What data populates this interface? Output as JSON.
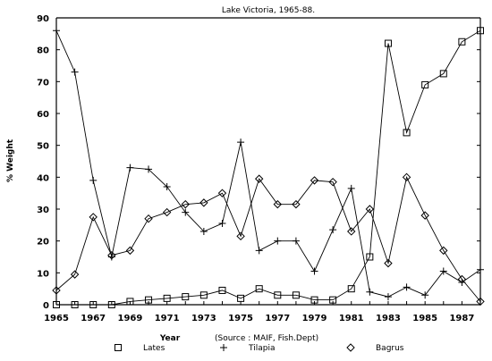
{
  "chart_data": {
    "type": "line",
    "title": "Lake Victoria, 1965-88.",
    "xlabel": "Year",
    "ylabel": "% Weight",
    "source_note": "(Source : MAIF, Fish.Dept)",
    "xlim": [
      1965,
      1988
    ],
    "ylim": [
      0,
      90
    ],
    "x_ticks": [
      "1965",
      "1967",
      "1969",
      "1971",
      "1973",
      "1975",
      "1977",
      "1979",
      "1981",
      "1983",
      "1985",
      "1987"
    ],
    "y_ticks": [
      "0",
      "10",
      "20",
      "30",
      "40",
      "50",
      "60",
      "70",
      "80",
      "90"
    ],
    "x": [
      1965,
      1966,
      1967,
      1968,
      1969,
      1970,
      1971,
      1972,
      1973,
      1974,
      1975,
      1976,
      1977,
      1978,
      1979,
      1980,
      1981,
      1982,
      1983,
      1984,
      1985,
      1986,
      1987,
      1988
    ],
    "series": [
      {
        "name": "Lates",
        "marker": "square",
        "values": [
          0,
          0,
          0,
          0,
          1,
          1.5,
          2,
          2.5,
          3,
          4.5,
          2,
          5,
          3,
          3,
          1.5,
          1.5,
          5,
          15,
          82,
          54,
          69,
          72.5,
          82.5,
          86
        ]
      },
      {
        "name": "Tilapia",
        "marker": "plus",
        "values": [
          86,
          73,
          39,
          15,
          43,
          42.5,
          37,
          29,
          23,
          25.5,
          51,
          17,
          20,
          20,
          10.5,
          23.5,
          36.5,
          4,
          2.5,
          5.5,
          3,
          10.5,
          7,
          11
        ]
      },
      {
        "name": "Bagrus",
        "marker": "diamond",
        "values": [
          4.5,
          9.5,
          27.5,
          15.5,
          17,
          27,
          29,
          31.5,
          32,
          35,
          21.5,
          39.5,
          31.5,
          31.5,
          39,
          38.5,
          23,
          30,
          13,
          40,
          28,
          17,
          8,
          1
        ]
      }
    ],
    "legend_position": "bottom",
    "grid": false
  }
}
